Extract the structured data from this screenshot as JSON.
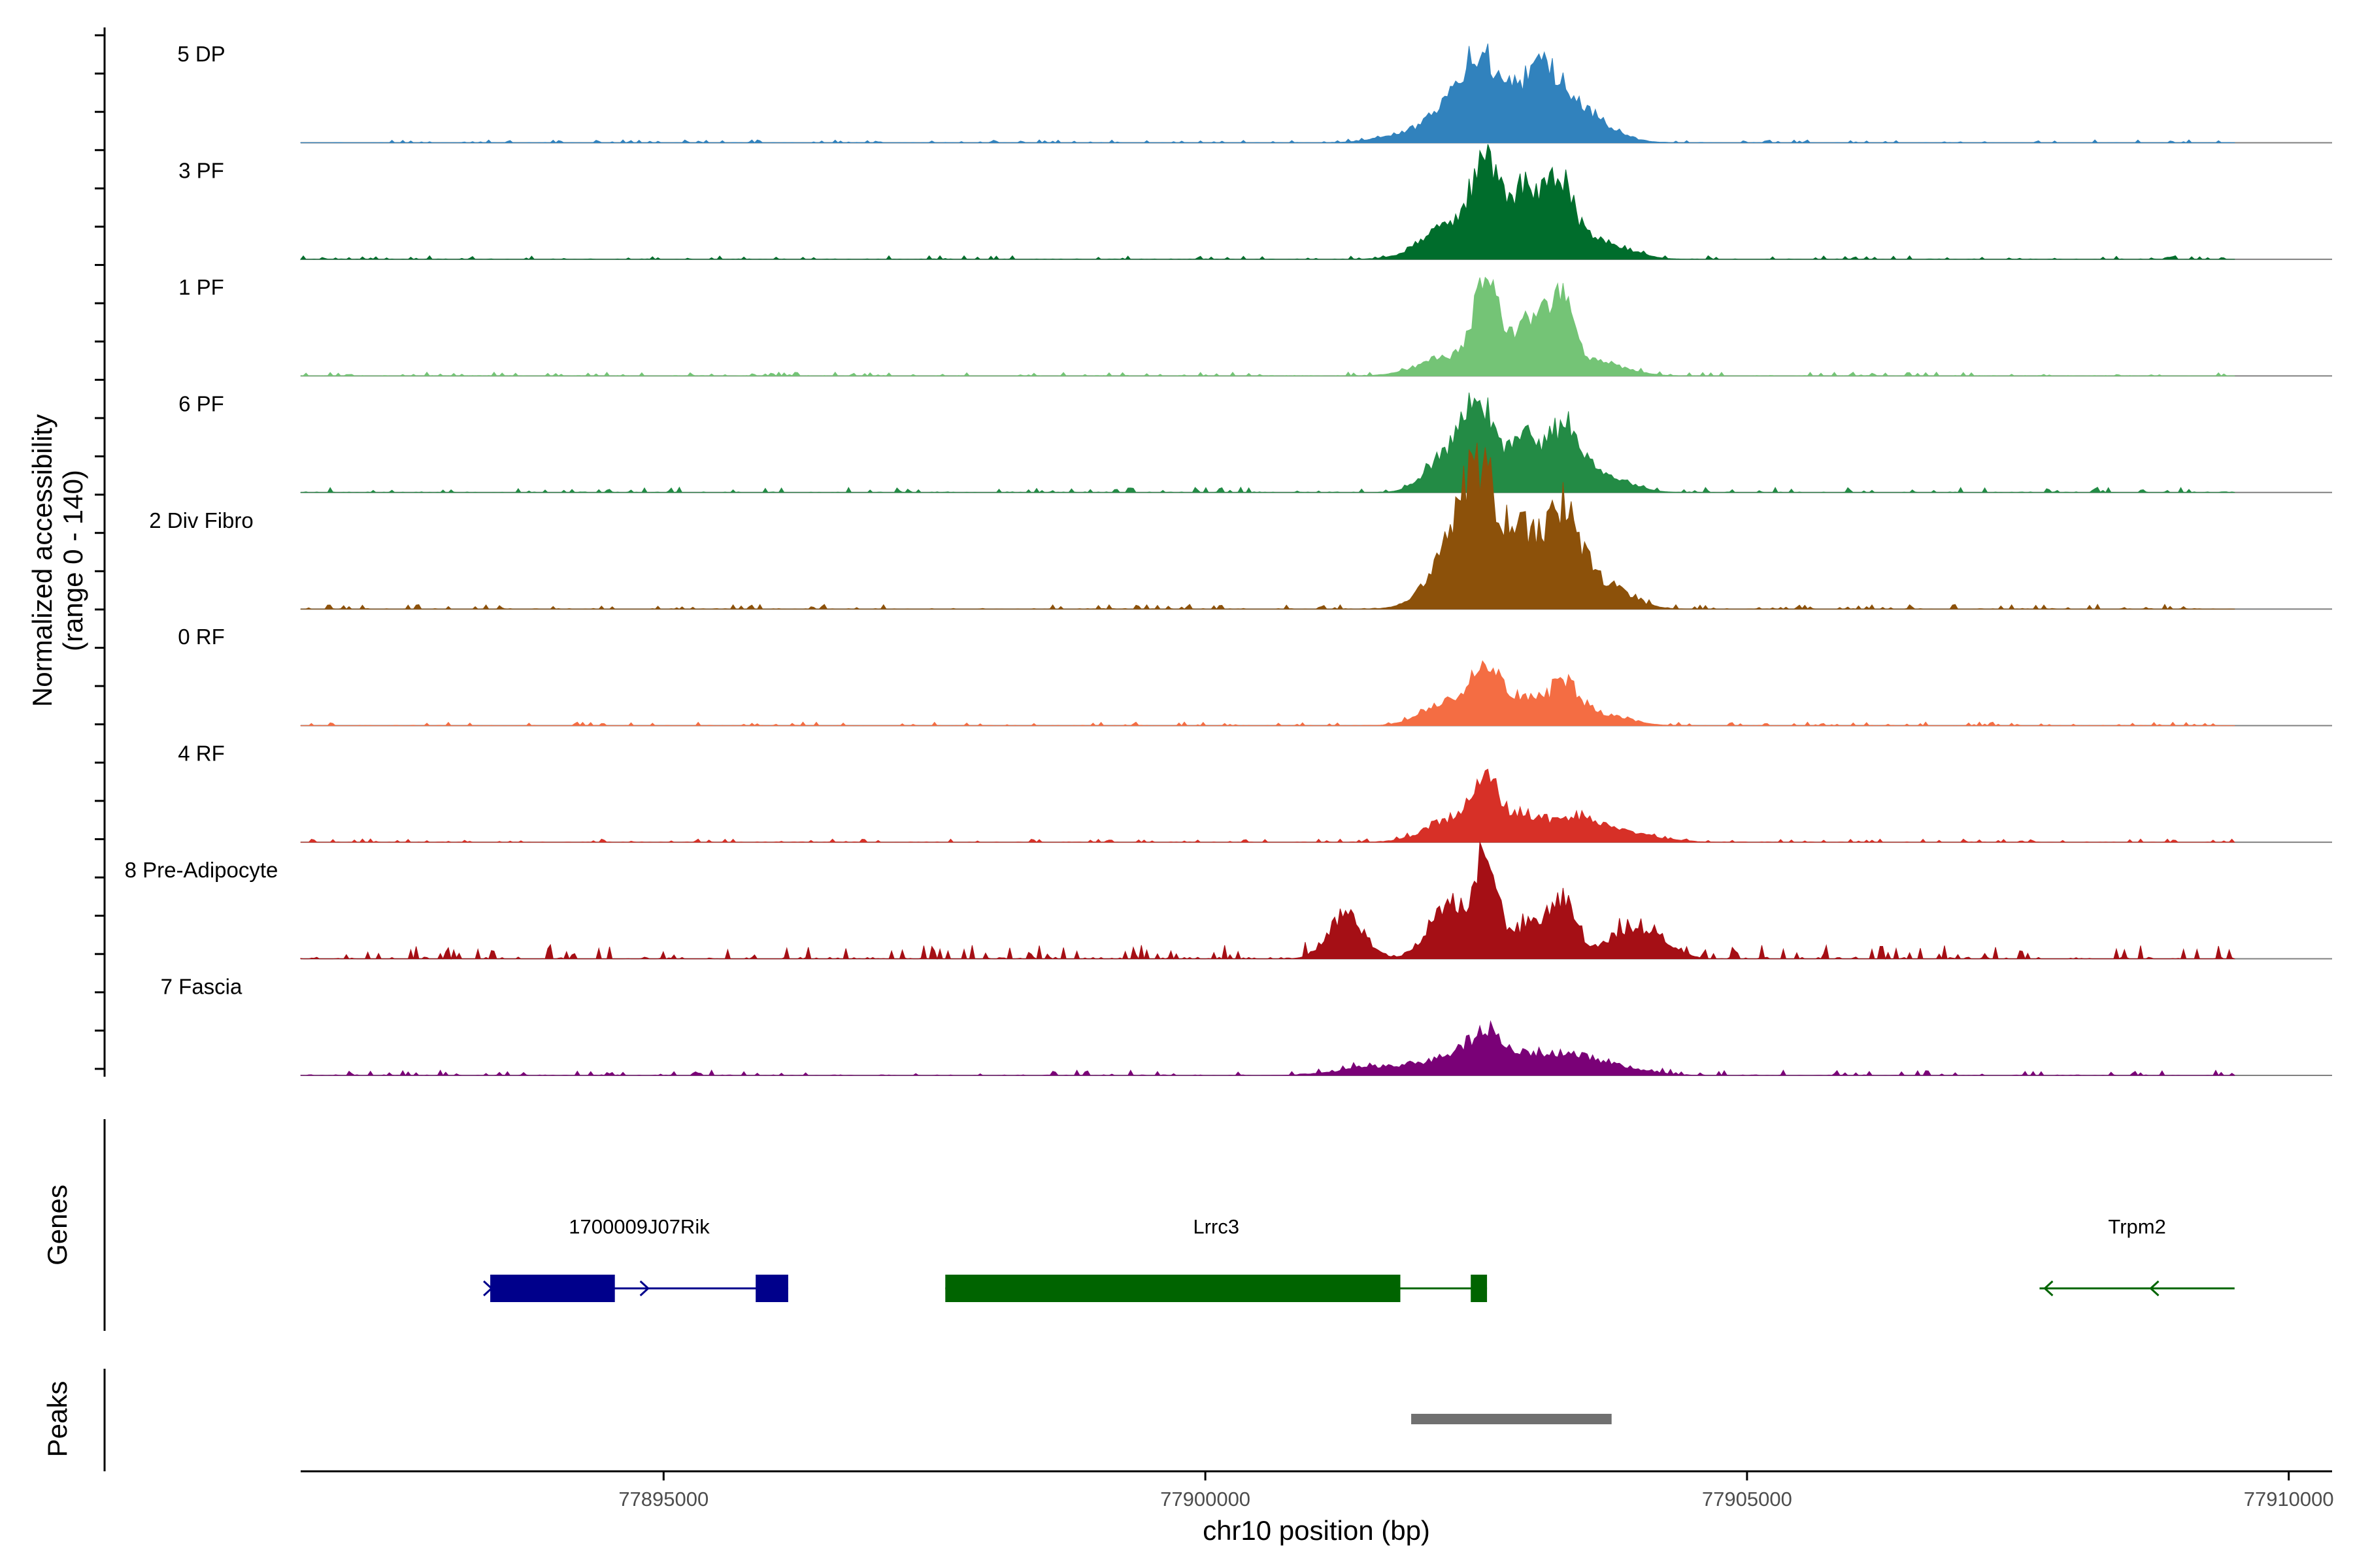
{
  "chart_data": {
    "type": "area",
    "title": "",
    "ylabel_line1": "Normalized accessibility",
    "ylabel_line2": "(range 0 - 140)",
    "ylim": [
      0,
      140
    ],
    "xlabel": "chr10 position (bp)",
    "xlim": [
      77891650,
      77910400
    ],
    "xticks": [
      77895000,
      77900000,
      77905000,
      77910000
    ],
    "xtick_labels": [
      "77895000",
      "77900000",
      "77905000",
      "77910000"
    ],
    "track_extent": [
      77891650,
      77909500
    ],
    "genes_label": "Genes",
    "peaks_label": "Peaks",
    "peak_center": 77902400,
    "series": [
      {
        "name": "5 DP",
        "color": "#3182BD",
        "noise": 1.2,
        "bumps": [
          [
            77902400,
            48,
            200
          ],
          [
            77902650,
            40,
            170
          ],
          [
            77903100,
            58,
            190
          ],
          [
            77903500,
            22,
            250
          ],
          [
            77902000,
            10,
            300
          ]
        ]
      },
      {
        "name": "3 PF",
        "color": "#006D2C",
        "noise": 1.5,
        "bumps": [
          [
            77902600,
            78,
            130
          ],
          [
            77902950,
            55,
            110
          ],
          [
            77903250,
            68,
            140
          ],
          [
            77902250,
            28,
            250
          ],
          [
            77903650,
            15,
            250
          ]
        ]
      },
      {
        "name": "1 PF",
        "color": "#74C476",
        "noise": 1.6,
        "bumps": [
          [
            77902600,
            72,
            130
          ],
          [
            77902950,
            38,
            110
          ],
          [
            77903250,
            65,
            140
          ],
          [
            77902200,
            14,
            250
          ],
          [
            77903650,
            10,
            250
          ]
        ]
      },
      {
        "name": "6 PF",
        "color": "#238B45",
        "noise": 2.2,
        "bumps": [
          [
            77902550,
            65,
            160
          ],
          [
            77902250,
            30,
            200
          ],
          [
            77902950,
            42,
            120
          ],
          [
            77903300,
            52,
            150
          ],
          [
            77903650,
            15,
            240
          ]
        ]
      },
      {
        "name": "2 Div Fibro",
        "color": "#8C510A",
        "noise": 2.0,
        "bumps": [
          [
            77902550,
            98,
            170
          ],
          [
            77902300,
            44,
            230
          ],
          [
            77902950,
            55,
            140
          ],
          [
            77903300,
            78,
            150
          ],
          [
            77903650,
            22,
            240
          ]
        ]
      },
      {
        "name": "0 RF",
        "color": "#F46D43",
        "noise": 1.5,
        "bumps": [
          [
            77902600,
            48,
            140
          ],
          [
            77902250,
            20,
            230
          ],
          [
            77902950,
            22,
            120
          ],
          [
            77903300,
            34,
            140
          ],
          [
            77903650,
            10,
            240
          ]
        ]
      },
      {
        "name": "4 RF",
        "color": "#D73027",
        "noise": 1.4,
        "bumps": [
          [
            77902600,
            45,
            140
          ],
          [
            77902250,
            18,
            230
          ],
          [
            77902950,
            18,
            130
          ],
          [
            77903350,
            20,
            230
          ],
          [
            77903850,
            8,
            300
          ]
        ]
      },
      {
        "name": "8 Pre-Adipocyte",
        "color": "#A50F15",
        "noise": 6.0,
        "bumps": [
          [
            77902600,
            82,
            110
          ],
          [
            77902250,
            45,
            180
          ],
          [
            77903300,
            48,
            130
          ],
          [
            77903000,
            30,
            130
          ],
          [
            77901300,
            38,
            160
          ],
          [
            77903900,
            22,
            200
          ],
          [
            77904200,
            12,
            160
          ]
        ]
      },
      {
        "name": "7 Fascia",
        "color": "#7A0177",
        "noise": 2.2,
        "bumps": [
          [
            77902600,
            28,
            200
          ],
          [
            77902200,
            12,
            300
          ],
          [
            77903200,
            16,
            300
          ],
          [
            77903700,
            8,
            300
          ],
          [
            77901500,
            6,
            300
          ]
        ]
      }
    ],
    "genes": [
      {
        "name": "1700009J07Rik",
        "color": "#00008B",
        "strand": "+",
        "start": 77893400,
        "end": 77896150,
        "exons": [
          [
            77893400,
            77894550
          ],
          [
            77895850,
            77896150
          ]
        ]
      },
      {
        "name": "Lrrc3",
        "color": "#006400",
        "strand": "+",
        "start": 77897600,
        "end": 77902600,
        "exons": [
          [
            77897600,
            77901800
          ],
          [
            77902450,
            77902600
          ]
        ]
      },
      {
        "name": "Trpm2",
        "color": "#006400",
        "strand": "-",
        "start": 77907700,
        "end": 77909500,
        "exons": []
      }
    ],
    "peaks": [
      {
        "start": 77901900,
        "end": 77903750,
        "color": "#707070"
      }
    ]
  }
}
